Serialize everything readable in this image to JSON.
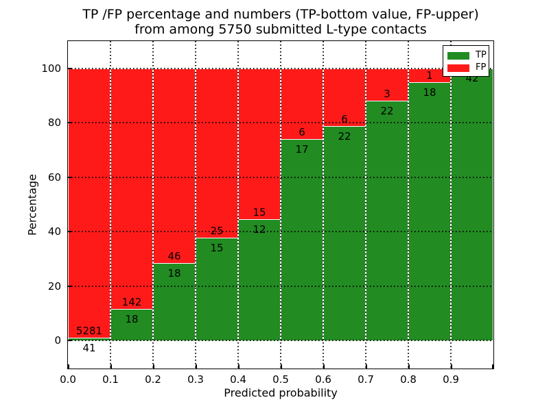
{
  "figure": {
    "title_line1": "TP /FP percentage and numbers (TP-bottom value, FP-upper)",
    "title_line2": "from among 5750 submitted L-type contacts",
    "xlabel": "Predicted probability",
    "ylabel": "Percentage"
  },
  "legend": {
    "position": "upper right",
    "items": [
      {
        "label": "TP",
        "color": "#228b22"
      },
      {
        "label": "FP",
        "color": "#ff1a1a"
      }
    ]
  },
  "chart_data": {
    "type": "bar",
    "stacked": true,
    "normalized_to_percent": true,
    "title": "TP /FP percentage and numbers (TP-bottom value, FP-upper) from among 5750 submitted L-type contacts",
    "xlabel": "Predicted probability",
    "ylabel": "Percentage",
    "total_submitted": 5750,
    "bin_width": 0.1,
    "bin_starts": [
      0.0,
      0.1,
      0.2,
      0.3,
      0.4,
      0.5,
      0.6,
      0.7,
      0.8,
      0.9
    ],
    "categories": [
      "0.0-0.1",
      "0.1-0.2",
      "0.2-0.3",
      "0.3-0.4",
      "0.4-0.5",
      "0.5-0.6",
      "0.6-0.7",
      "0.7-0.8",
      "0.8-0.9",
      "0.9-1.0"
    ],
    "series": [
      {
        "name": "TP",
        "color": "#228b22",
        "counts": [
          41,
          18,
          18,
          15,
          12,
          17,
          22,
          22,
          18,
          42
        ]
      },
      {
        "name": "FP",
        "color": "#ff1a1a",
        "counts": [
          5281,
          142,
          46,
          25,
          15,
          6,
          6,
          3,
          1,
          0
        ]
      }
    ],
    "tp_percent": [
      0.77,
      11.25,
      28.13,
      37.5,
      44.44,
      73.91,
      78.57,
      88.0,
      94.74,
      100.0
    ],
    "xticks": [
      "0.0",
      "0.1",
      "0.2",
      "0.3",
      "0.4",
      "0.5",
      "0.6",
      "0.7",
      "0.8",
      "0.9"
    ],
    "yticks": [
      0,
      20,
      40,
      60,
      80,
      100
    ],
    "xlim": [
      0.0,
      1.0
    ],
    "ylim": [
      -10.5,
      110.5
    ],
    "grid": "dotted",
    "legend_position": "upper right"
  },
  "colors": {
    "tp": "#228b22",
    "fp": "#ff1a1a",
    "bar_edge": "#ffffff",
    "grid": "#000000",
    "text": "#000000",
    "background": "#ffffff"
  }
}
